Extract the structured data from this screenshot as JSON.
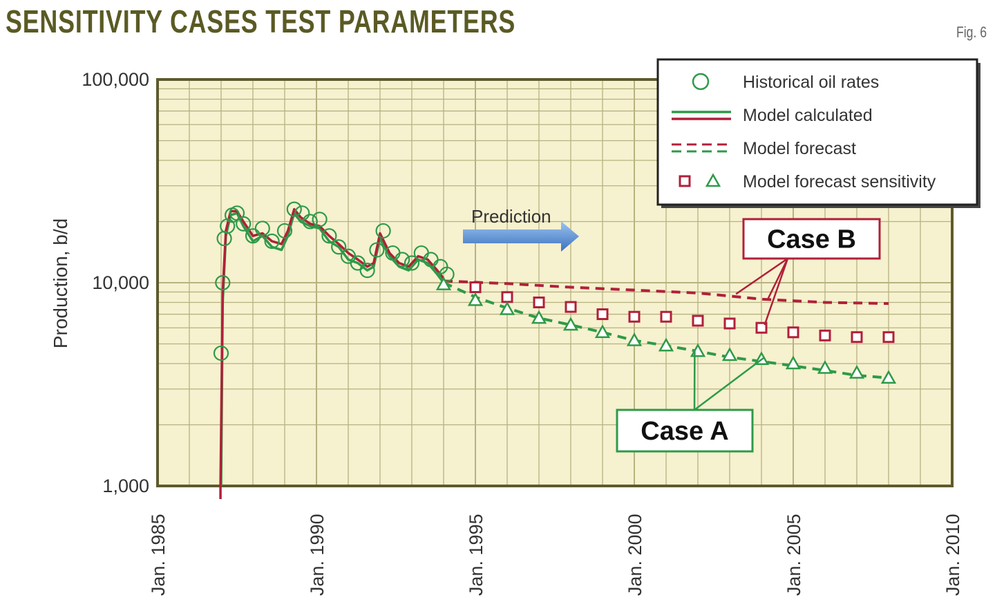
{
  "header": {
    "title": "Sensitivity cases test parameters",
    "fig_label": "Fig. 6"
  },
  "chart_data": {
    "type": "line",
    "ylabel": "Production, b/d",
    "xlabel": "",
    "y_scale": "log",
    "ylim": [
      1000,
      100000
    ],
    "xlim": [
      1985,
      2010
    ],
    "y_ticks": [
      {
        "value": 1000,
        "label": "1,000"
      },
      {
        "value": 10000,
        "label": "10,000"
      },
      {
        "value": 100000,
        "label": "100,000"
      }
    ],
    "x_ticks": [
      {
        "value": 1985,
        "label": "Jan. 1985"
      },
      {
        "value": 1990,
        "label": "Jan. 1990"
      },
      {
        "value": 1995,
        "label": "Jan. 1995"
      },
      {
        "value": 2000,
        "label": "Jan. 2000"
      },
      {
        "value": 2005,
        "label": "Jan. 2005"
      },
      {
        "value": 2010,
        "label": "Jan. 2010"
      }
    ],
    "grid": true,
    "legend_position": "top-right",
    "legend": [
      {
        "label": "Historical oil rates",
        "symbol": "circle"
      },
      {
        "label": "Model calculated",
        "symbol": "solid-lines"
      },
      {
        "label": "Model forecast",
        "symbol": "dashed-lines"
      },
      {
        "label": "Model forecast sensitivity",
        "symbol": "square-triangle"
      }
    ],
    "colors": {
      "red": "#b0203a",
      "green": "#2e9a48",
      "plot_bg": "#f6f1cf",
      "grid": "#b7b27f",
      "frame": "#5e5a2e",
      "arrow": "#5a8fd0"
    },
    "series": [
      {
        "name": "Historical oil rates",
        "marker": "circle",
        "x": [
          1987.0,
          1987.05,
          1987.1,
          1987.2,
          1987.35,
          1987.5,
          1987.7,
          1988.0,
          1988.3,
          1988.6,
          1989.0,
          1989.3,
          1989.55,
          1989.8,
          1990.1,
          1990.4,
          1990.7,
          1991.0,
          1991.3,
          1991.6,
          1991.9,
          1992.1,
          1992.4,
          1992.7,
          1993.0,
          1993.3,
          1993.6,
          1993.9,
          1994.1
        ],
        "values": [
          4500,
          10000,
          16500,
          19000,
          21500,
          22000,
          19500,
          17000,
          18500,
          16000,
          18000,
          23000,
          22000,
          20000,
          20500,
          17000,
          15000,
          13500,
          12500,
          11500,
          14500,
          18000,
          14000,
          13000,
          12500,
          14000,
          13000,
          12000,
          11000
        ]
      },
      {
        "name": "Model calculated",
        "line": "solid",
        "color": "green",
        "x": [
          1987.0,
          1987.05,
          1987.15,
          1987.3,
          1987.5,
          1987.7,
          1988.0,
          1988.3,
          1988.6,
          1988.9,
          1989.1,
          1989.3,
          1989.5,
          1989.8,
          1990.1,
          1990.4,
          1990.7,
          1991.0,
          1991.3,
          1991.6,
          1991.8,
          1992.0,
          1992.3,
          1992.6,
          1992.9,
          1993.2,
          1993.5,
          1993.8,
          1994.0
        ],
        "values": [
          1000,
          8000,
          17000,
          21500,
          22000,
          19000,
          16000,
          17000,
          15000,
          14500,
          17000,
          22000,
          20000,
          19000,
          18500,
          16000,
          15000,
          13000,
          12500,
          11500,
          12000,
          16500,
          13500,
          12000,
          11500,
          13000,
          12500,
          11000,
          10000
        ]
      },
      {
        "name": "Model calculated",
        "line": "solid",
        "color": "red",
        "x": [
          1986.98,
          1987.05,
          1987.15,
          1987.3,
          1987.5,
          1987.7,
          1988.0,
          1988.3,
          1988.6,
          1988.9,
          1989.1,
          1989.3,
          1989.5,
          1989.8,
          1990.1,
          1990.4,
          1990.7,
          1991.0,
          1991.3,
          1991.6,
          1991.8,
          1992.0,
          1992.3,
          1992.6,
          1992.9,
          1993.2,
          1993.5,
          1993.8,
          1994.0
        ],
        "values": [
          1000,
          9000,
          18000,
          22500,
          22500,
          20000,
          17000,
          17500,
          16000,
          15500,
          18000,
          23000,
          21000,
          19500,
          19000,
          17000,
          15500,
          14000,
          13000,
          12000,
          12500,
          17500,
          14000,
          12500,
          12000,
          13500,
          13000,
          11500,
          10500
        ]
      },
      {
        "name": "Model forecast",
        "line": "dashed",
        "color": "red",
        "x": [
          1994.0,
          1996,
          1998,
          2000,
          2002,
          2004,
          2006,
          2008
        ],
        "values": [
          10200,
          9900,
          9500,
          9200,
          8900,
          8300,
          8000,
          7900
        ]
      },
      {
        "name": "Model forecast",
        "line": "dashed",
        "color": "green",
        "x": [
          1994.0,
          1995,
          1996,
          1997,
          1998,
          1999,
          2000,
          2001,
          2002,
          2003,
          2004,
          2005,
          2006,
          2007,
          2008
        ],
        "values": [
          10000,
          8500,
          7500,
          6700,
          6200,
          5700,
          5200,
          4900,
          4600,
          4300,
          4100,
          3900,
          3700,
          3500,
          3400
        ]
      },
      {
        "name": "Model forecast sensitivity",
        "marker": "square",
        "color": "red",
        "x": [
          1995,
          1996,
          1997,
          1998,
          1999,
          2000,
          2001,
          2002,
          2003,
          2004,
          2005,
          2006,
          2007,
          2008
        ],
        "values": [
          9500,
          8500,
          8000,
          7600,
          7000,
          6800,
          6800,
          6500,
          6300,
          6000,
          5700,
          5500,
          5400,
          5400
        ]
      },
      {
        "name": "Model forecast sensitivity",
        "marker": "triangle",
        "color": "green",
        "x": [
          1994.0,
          1995,
          1996,
          1997,
          1998,
          1999,
          2000,
          2001,
          2002,
          2003,
          2004,
          2005,
          2006,
          2007,
          2008
        ],
        "values": [
          9800,
          8200,
          7400,
          6700,
          6200,
          5700,
          5200,
          4900,
          4600,
          4400,
          4200,
          4000,
          3800,
          3600,
          3400
        ]
      }
    ],
    "annotations": [
      {
        "text": "Prediction",
        "x": 1996.5,
        "y": 17000,
        "kind": "arrow-right"
      },
      {
        "text": "Case B",
        "x": 2005.5,
        "y": 15000,
        "color": "red",
        "pointers": [
          {
            "x": 2003.2,
            "y": 8800
          },
          {
            "x": 2004.2,
            "y": 8300
          },
          {
            "x": 2004.1,
            "y": 6200
          }
        ]
      },
      {
        "text": "Case A",
        "x": 2002.5,
        "y": 2500,
        "color": "green",
        "pointers": [
          {
            "x": 2001.9,
            "y": 4700
          },
          {
            "x": 2004.1,
            "y": 4300
          }
        ]
      }
    ]
  }
}
